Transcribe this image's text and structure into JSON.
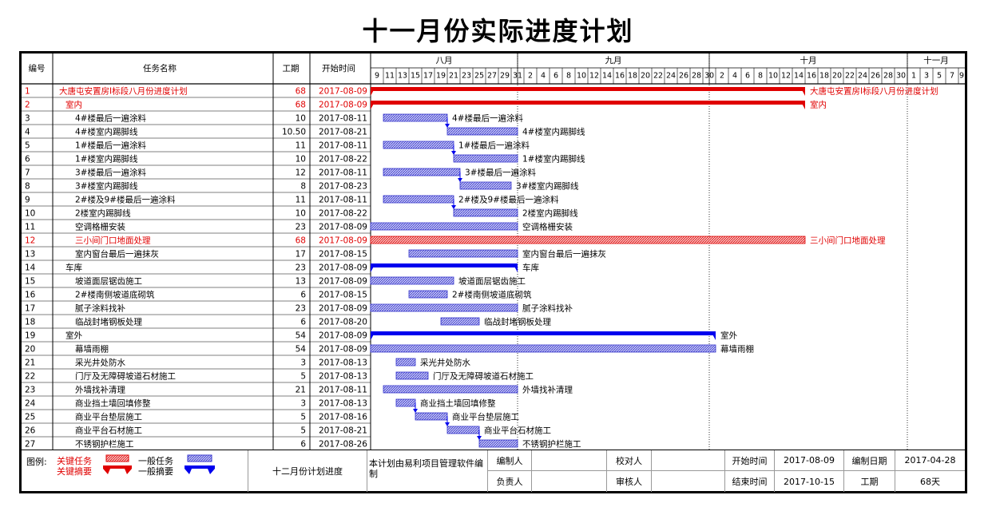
{
  "page": {
    "title": "十一月份实际进度计划"
  },
  "headers": {
    "id": "编号",
    "name": "任务名称",
    "duration": "工期",
    "start": "开始时间"
  },
  "months": [
    {
      "label": "八月",
      "start": "2017-08-09",
      "end": "2017-08-31"
    },
    {
      "label": "九月",
      "start": "2017-09-01",
      "end": "2017-09-30"
    },
    {
      "label": "十月",
      "start": "2017-10-01",
      "end": "2017-10-31"
    },
    {
      "label": "十一月",
      "start": "2017-11-01",
      "end": "2017-11-10"
    }
  ],
  "day_labels": [
    {
      "date": "2017-08-09",
      "label": "9"
    },
    {
      "date": "2017-08-11",
      "label": "11"
    },
    {
      "date": "2017-08-13",
      "label": "13"
    },
    {
      "date": "2017-08-15",
      "label": "15"
    },
    {
      "date": "2017-08-17",
      "label": "17"
    },
    {
      "date": "2017-08-19",
      "label": "19"
    },
    {
      "date": "2017-08-21",
      "label": "21"
    },
    {
      "date": "2017-08-23",
      "label": "23"
    },
    {
      "date": "2017-08-25",
      "label": "25"
    },
    {
      "date": "2017-08-27",
      "label": "27"
    },
    {
      "date": "2017-08-29",
      "label": "29"
    },
    {
      "date": "2017-08-31",
      "label": "31"
    },
    {
      "date": "2017-09-02",
      "label": "2"
    },
    {
      "date": "2017-09-04",
      "label": "4"
    },
    {
      "date": "2017-09-06",
      "label": "6"
    },
    {
      "date": "2017-09-08",
      "label": "8"
    },
    {
      "date": "2017-09-10",
      "label": "10"
    },
    {
      "date": "2017-09-12",
      "label": "12"
    },
    {
      "date": "2017-09-14",
      "label": "14"
    },
    {
      "date": "2017-09-16",
      "label": "16"
    },
    {
      "date": "2017-09-18",
      "label": "18"
    },
    {
      "date": "2017-09-20",
      "label": "20"
    },
    {
      "date": "2017-09-22",
      "label": "22"
    },
    {
      "date": "2017-09-24",
      "label": "24"
    },
    {
      "date": "2017-09-26",
      "label": "26"
    },
    {
      "date": "2017-09-28",
      "label": "28"
    },
    {
      "date": "2017-09-30",
      "label": "30"
    },
    {
      "date": "2017-10-02",
      "label": "2"
    },
    {
      "date": "2017-10-04",
      "label": "4"
    },
    {
      "date": "2017-10-06",
      "label": "6"
    },
    {
      "date": "2017-10-08",
      "label": "8"
    },
    {
      "date": "2017-10-10",
      "label": "10"
    },
    {
      "date": "2017-10-12",
      "label": "12"
    },
    {
      "date": "2017-10-14",
      "label": "14"
    },
    {
      "date": "2017-10-16",
      "label": "16"
    },
    {
      "date": "2017-10-18",
      "label": "18"
    },
    {
      "date": "2017-10-20",
      "label": "20"
    },
    {
      "date": "2017-10-22",
      "label": "22"
    },
    {
      "date": "2017-10-24",
      "label": "24"
    },
    {
      "date": "2017-10-26",
      "label": "26"
    },
    {
      "date": "2017-10-28",
      "label": "28"
    },
    {
      "date": "2017-10-30",
      "label": "30"
    },
    {
      "date": "2017-11-01",
      "label": "1"
    },
    {
      "date": "2017-11-03",
      "label": "3"
    },
    {
      "date": "2017-11-05",
      "label": "5"
    },
    {
      "date": "2017-11-07",
      "label": "7"
    },
    {
      "date": "2017-11-09",
      "label": "9"
    }
  ],
  "chart_data": {
    "type": "gantt",
    "title": "十一月份实际进度计划",
    "x_range": [
      "2017-08-09",
      "2017-11-10"
    ],
    "tasks": [
      {
        "id": "1",
        "name": "大唐屯安置房Ⅰ标段八月份进度计划",
        "duration": "68",
        "start": "2017-08-09",
        "end": "2017-10-15",
        "kind": "critical-summary",
        "level": 0,
        "bar_label": "大唐屯安置房Ⅰ标段八月份进度计划"
      },
      {
        "id": "2",
        "name": "室内",
        "duration": "68",
        "start": "2017-08-09",
        "end": "2017-10-15",
        "kind": "critical-summary",
        "level": 1,
        "bar_label": "室内"
      },
      {
        "id": "3",
        "name": "4#楼最后一遍涂料",
        "duration": "10",
        "start": "2017-08-11",
        "end": "2017-08-20",
        "kind": "task",
        "level": 2,
        "bar_label": "4#楼最后一遍涂料"
      },
      {
        "id": "4",
        "name": "4#楼室内踢脚线",
        "duration": "10.50",
        "start": "2017-08-21",
        "end": "2017-08-31",
        "kind": "task",
        "level": 2,
        "bar_label": "4#楼室内踢脚线"
      },
      {
        "id": "5",
        "name": "1#楼最后一遍涂料",
        "duration": "11",
        "start": "2017-08-11",
        "end": "2017-08-21",
        "kind": "task",
        "level": 2,
        "bar_label": "1#楼最后一遍涂料"
      },
      {
        "id": "6",
        "name": "1#楼室内踢脚线",
        "duration": "10",
        "start": "2017-08-22",
        "end": "2017-08-31",
        "kind": "task",
        "level": 2,
        "bar_label": "1#楼室内踢脚线"
      },
      {
        "id": "7",
        "name": "3#楼最后一遍涂料",
        "duration": "12",
        "start": "2017-08-11",
        "end": "2017-08-22",
        "kind": "task",
        "level": 2,
        "bar_label": "3#楼最后一遍涂料"
      },
      {
        "id": "8",
        "name": "3#楼室内踢脚线",
        "duration": "8",
        "start": "2017-08-23",
        "end": "2017-08-30",
        "kind": "task",
        "level": 2,
        "bar_label": "3#楼室内踢脚线"
      },
      {
        "id": "9",
        "name": "2#楼及9#楼最后一遍涂料",
        "duration": "11",
        "start": "2017-08-11",
        "end": "2017-08-21",
        "kind": "task",
        "level": 2,
        "bar_label": "2#楼及9#楼最后一遍涂料"
      },
      {
        "id": "10",
        "name": "2楼室内踢脚线",
        "duration": "10",
        "start": "2017-08-22",
        "end": "2017-08-31",
        "kind": "task",
        "level": 2,
        "bar_label": "2楼室内踢脚线"
      },
      {
        "id": "11",
        "name": "空调格栅安装",
        "duration": "23",
        "start": "2017-08-09",
        "end": "2017-08-31",
        "kind": "task",
        "level": 2,
        "bar_label": "空调格栅安装"
      },
      {
        "id": "12",
        "name": "三小间门口地面处理",
        "duration": "68",
        "start": "2017-08-09",
        "end": "2017-10-15",
        "kind": "critical",
        "level": 2,
        "bar_label": "三小间门口地面处理"
      },
      {
        "id": "13",
        "name": "室内窗台最后一遍抹灰",
        "duration": "17",
        "start": "2017-08-15",
        "end": "2017-08-31",
        "kind": "task",
        "level": 2,
        "bar_label": "室内窗台最后一遍抹灰"
      },
      {
        "id": "14",
        "name": "车库",
        "duration": "23",
        "start": "2017-08-09",
        "end": "2017-08-31",
        "kind": "summary",
        "level": 1,
        "bar_label": "车库"
      },
      {
        "id": "15",
        "name": "坡道面层锯齿施工",
        "duration": "13",
        "start": "2017-08-09",
        "end": "2017-08-21",
        "kind": "task",
        "level": 2,
        "bar_label": "坡道面层锯齿施工"
      },
      {
        "id": "16",
        "name": "2#楼南侧坡道底砌筑",
        "duration": "6",
        "start": "2017-08-15",
        "end": "2017-08-20",
        "kind": "task",
        "level": 2,
        "bar_label": "2#楼南侧坡道底砌筑"
      },
      {
        "id": "17",
        "name": "腻子涂料找补",
        "duration": "23",
        "start": "2017-08-09",
        "end": "2017-08-31",
        "kind": "task",
        "level": 2,
        "bar_label": "腻子涂料找补"
      },
      {
        "id": "18",
        "name": "临战封堵钢板处理",
        "duration": "6",
        "start": "2017-08-20",
        "end": "2017-08-25",
        "kind": "task",
        "level": 2,
        "bar_label": "临战封堵钢板处理"
      },
      {
        "id": "19",
        "name": "室外",
        "duration": "54",
        "start": "2017-08-09",
        "end": "2017-10-01",
        "kind": "summary",
        "level": 1,
        "bar_label": "室外"
      },
      {
        "id": "20",
        "name": "幕墙雨棚",
        "duration": "54",
        "start": "2017-08-09",
        "end": "2017-10-01",
        "kind": "task",
        "level": 2,
        "bar_label": "幕墙雨棚"
      },
      {
        "id": "21",
        "name": "采光井处防水",
        "duration": "3",
        "start": "2017-08-13",
        "end": "2017-08-15",
        "kind": "task",
        "level": 2,
        "bar_label": "采光井处防水"
      },
      {
        "id": "22",
        "name": "门厅及无障碍坡道石材施工",
        "duration": "5",
        "start": "2017-08-13",
        "end": "2017-08-17",
        "kind": "task",
        "level": 2,
        "bar_label": "门厅及无障碍坡道石材施工"
      },
      {
        "id": "23",
        "name": "外墙找补清理",
        "duration": "21",
        "start": "2017-08-11",
        "end": "2017-08-31",
        "kind": "task",
        "level": 2,
        "bar_label": "外墙找补清理"
      },
      {
        "id": "24",
        "name": "商业挡土墙回填修整",
        "duration": "3",
        "start": "2017-08-13",
        "end": "2017-08-15",
        "kind": "task",
        "level": 2,
        "bar_label": "商业挡土墙回填修整"
      },
      {
        "id": "25",
        "name": "商业平台垫层施工",
        "duration": "5",
        "start": "2017-08-16",
        "end": "2017-08-20",
        "kind": "task",
        "level": 2,
        "bar_label": "商业平台垫层施工"
      },
      {
        "id": "26",
        "name": "商业平台石材施工",
        "duration": "5",
        "start": "2017-08-21",
        "end": "2017-08-25",
        "kind": "task",
        "level": 2,
        "bar_label": "商业平台石材施工"
      },
      {
        "id": "27",
        "name": "不锈钢护栏施工",
        "duration": "6",
        "start": "2017-08-26",
        "end": "2017-08-31",
        "kind": "task",
        "level": 2,
        "bar_label": "不锈钢护栏施工"
      }
    ],
    "links": [
      [
        "3",
        "4"
      ],
      [
        "5",
        "6"
      ],
      [
        "7",
        "8"
      ],
      [
        "9",
        "10"
      ],
      [
        "24",
        "25"
      ],
      [
        "25",
        "26"
      ],
      [
        "26",
        "27"
      ]
    ],
    "colors": {
      "task": "#3333cc",
      "task_fill": "#9999ee",
      "critical": "#e00000",
      "summary_blue": "#0000ee"
    }
  },
  "footer": {
    "legend_label": "图例:",
    "critical_task": "关键任务",
    "critical_summary": "关键摘要",
    "normal_task": "一般任务",
    "normal_summary": "一般摘要",
    "plan_name": "十二月份计划进度",
    "software_note": "本计划由易利项目管理软件编制",
    "editor_label": "编制人",
    "checker_label": "校对人",
    "start_label": "开始时间",
    "start_value": "2017-08-09",
    "edit_date_label": "编制日期",
    "edit_date_value": "2017-04-28",
    "owner_label": "负责人",
    "reviewer_label": "审核人",
    "end_label": "结束时间",
    "end_value": "2017-10-15",
    "duration_label": "工期",
    "duration_value": "68天"
  }
}
